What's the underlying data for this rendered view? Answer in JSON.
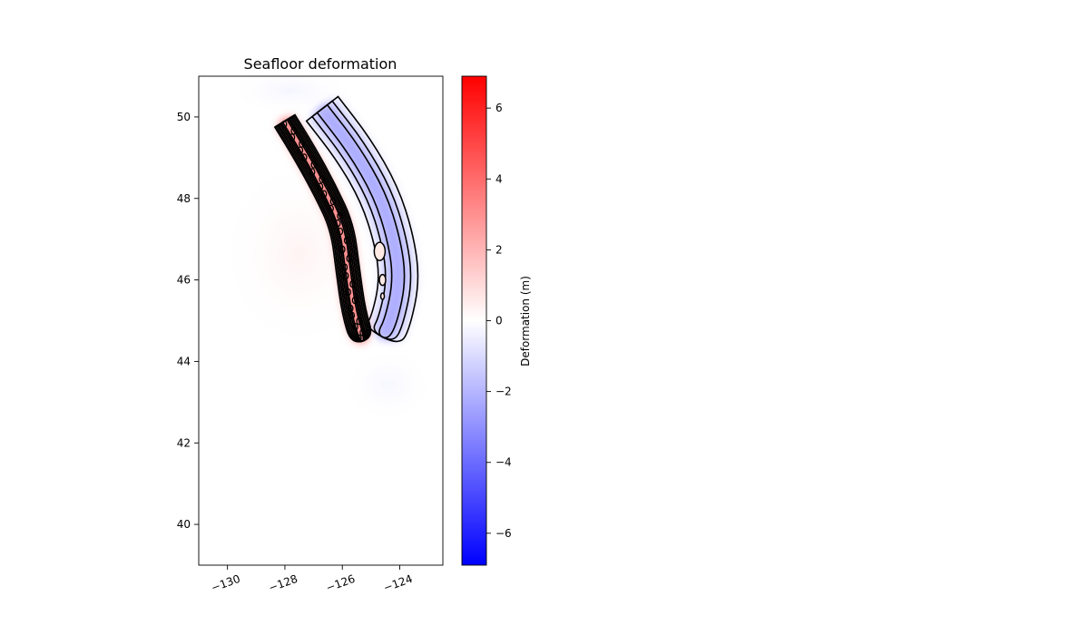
{
  "chart_data": {
    "type": "heatmap",
    "title": "Seafloor deformation",
    "xlabel": "",
    "ylabel": "",
    "xlim": [
      -131,
      -122.5
    ],
    "ylim": [
      39,
      51
    ],
    "x_ticks": [
      -130,
      -128,
      -126,
      -124
    ],
    "x_tick_labels": [
      "−130",
      "−128",
      "−126",
      "−124"
    ],
    "y_ticks": [
      40,
      42,
      44,
      46,
      48,
      50
    ],
    "y_tick_labels": [
      "40",
      "42",
      "44",
      "46",
      "48",
      "50"
    ],
    "grid": false,
    "legend": "none",
    "colormap": "bwr",
    "colors": {
      "min": "#0000ff",
      "mid": "#ffffff",
      "max": "#ff0000",
      "contour": "#000000"
    },
    "colorbar": {
      "label": "Deformation (m)",
      "range": [
        -6.9,
        6.9
      ],
      "ticks": [
        -6,
        -4,
        -2,
        0,
        2,
        4,
        6
      ],
      "tick_labels": [
        "−6",
        "−4",
        "−2",
        "0",
        "2",
        "4",
        "6"
      ]
    },
    "field": {
      "uplift_zone": {
        "peak_value": 3.5,
        "trace": [
          [
            -128.0,
            49.9
          ],
          [
            -127.3,
            49.1
          ],
          [
            -126.6,
            48.2
          ],
          [
            -126.0,
            47.3
          ],
          [
            -125.8,
            46.2
          ],
          [
            -125.6,
            45.2
          ],
          [
            -125.3,
            44.5
          ]
        ]
      },
      "subsidence_zone": {
        "peak_value": -2.5,
        "trace": [
          [
            -126.7,
            50.2
          ],
          [
            -125.6,
            49.2
          ],
          [
            -124.7,
            48.1
          ],
          [
            -124.2,
            47.0
          ],
          [
            -124.0,
            46.0
          ],
          [
            -124.3,
            45.0
          ],
          [
            -124.6,
            44.6
          ]
        ]
      }
    }
  }
}
